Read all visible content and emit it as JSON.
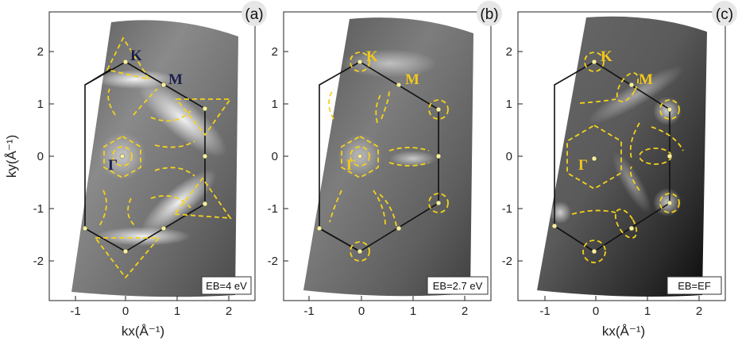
{
  "figure": {
    "ylabel": "ky(Å⁻¹)",
    "xlabel": "kx(Å⁻¹)",
    "x_ticks": [
      "-1",
      "0",
      "1",
      "2"
    ],
    "y_ticks": [
      "2",
      "1",
      "0",
      "-1",
      "-2"
    ],
    "symbols": {
      "K": "K",
      "M": "M",
      "Gamma": "Γ"
    },
    "colors": {
      "contour": "#f5d21a",
      "bz_line": "#111111",
      "label_dark": "#1b1f4d",
      "label_yellow": "#f2c81c"
    }
  },
  "panels": [
    {
      "label": "(a)",
      "energy": "EB=4 eV",
      "symbol_color": "dark"
    },
    {
      "label": "(b)",
      "energy": "EB=2.7 eV",
      "symbol_color": "yellow"
    },
    {
      "label": "(c)",
      "energy": "EB=EF",
      "symbol_color": "yellow"
    }
  ],
  "chart_data": {
    "type": "heatmap",
    "xlim": [
      -1.5,
      2.5
    ],
    "ylim": [
      -2.7,
      2.7
    ],
    "high_symmetry_points": {
      "Gamma": [
        0,
        0
      ],
      "K": [
        0,
        1.8
      ],
      "M": [
        0.75,
        1.35
      ]
    },
    "bz_vertices": [
      [
        0,
        1.8
      ],
      [
        1.5,
        0.9
      ],
      [
        1.5,
        -0.9
      ],
      [
        0,
        -1.8
      ],
      [
        -0.75,
        -1.35
      ],
      [
        -0.75,
        1.35
      ]
    ]
  }
}
